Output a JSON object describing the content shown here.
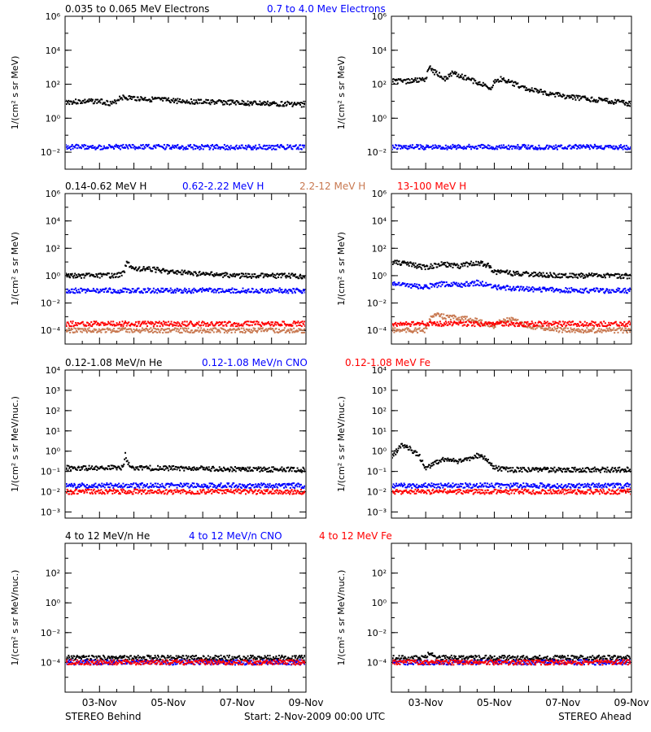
{
  "footer": {
    "left": "STEREO Behind",
    "center": "Start:  2-Nov-2009 00:00 UTC",
    "right": "STEREO Ahead"
  },
  "colors": {
    "black": "#000000",
    "blue": "#0000ff",
    "tan": "#c87850",
    "red": "#ff0000"
  },
  "x_tick_labels": [
    "03-Nov",
    "05-Nov",
    "07-Nov",
    "09-Nov"
  ],
  "chart_data": [
    {
      "type": "scatter",
      "panel": "behind",
      "row": 1,
      "legend": [
        "0.035 to 0.065 MeV Electrons",
        "0.7 to 4.0 Mev Electrons"
      ],
      "ylabel": "1/(cm² s sr MeV)",
      "yscale": "log",
      "ylim": [
        0.001,
        1000000
      ],
      "yticks": [
        0.01,
        1,
        100,
        10000,
        1000000
      ],
      "ytick_labels": [
        "10⁻²",
        "10⁰",
        "10²",
        "10⁴",
        "10⁶"
      ],
      "xlim_days": [
        2,
        9
      ],
      "x_ticks_days": [
        3,
        5,
        7,
        9
      ],
      "series": [
        {
          "name": "0.035 to 0.065 MeV Electrons",
          "color": "black",
          "x": [
            2.0,
            3.0,
            3.4,
            3.6,
            4.0,
            5.0,
            6.0,
            7.0,
            8.0,
            8.5,
            9.0
          ],
          "y": [
            9,
            10,
            7,
            17,
            15,
            11,
            9,
            8,
            7,
            7,
            6
          ]
        },
        {
          "name": "0.7 to 4.0 Mev Electrons",
          "color": "blue",
          "x": [
            2.0,
            9.0
          ],
          "y": [
            0.02,
            0.02
          ]
        }
      ]
    },
    {
      "type": "scatter",
      "panel": "ahead",
      "row": 1,
      "ylabel": "1/(cm² s sr MeV)",
      "yscale": "log",
      "ylim": [
        0.001,
        1000000
      ],
      "yticks": [
        0.01,
        1,
        100,
        10000,
        1000000
      ],
      "ytick_labels": [
        "10⁻²",
        "10⁰",
        "10²",
        "10⁴",
        "10⁶"
      ],
      "xlim_days": [
        2,
        9
      ],
      "x_ticks_days": [
        3,
        5,
        7,
        9
      ],
      "series": [
        {
          "name": "0.035 to 0.065 MeV Electrons",
          "color": "black",
          "x": [
            2.0,
            2.5,
            3.0,
            3.1,
            3.2,
            3.6,
            3.8,
            4.0,
            4.5,
            4.9,
            5.0,
            5.2,
            6.0,
            7.0,
            8.0,
            9.0
          ],
          "y": [
            150,
            150,
            200,
            1000,
            600,
            200,
            500,
            300,
            130,
            60,
            140,
            200,
            50,
            20,
            12,
            7
          ]
        },
        {
          "name": "0.7 to 4.0 Mev Electrons",
          "color": "blue",
          "x": [
            2.0,
            9.0
          ],
          "y": [
            0.02,
            0.02
          ]
        }
      ]
    },
    {
      "type": "scatter",
      "panel": "behind",
      "row": 2,
      "legend": [
        "0.14-0.62 MeV H",
        "0.62-2.22 MeV H",
        "2.2-12 MeV H",
        "13-100 MeV H"
      ],
      "ylabel": "1/(cm² s sr MeV)",
      "yscale": "log",
      "ylim": [
        1e-05,
        1000000
      ],
      "yticks": [
        0.0001,
        0.01,
        1,
        100,
        10000,
        1000000
      ],
      "ytick_labels": [
        "10⁻⁴",
        "10⁻²",
        "10⁰",
        "10²",
        "10⁴",
        "10⁶"
      ],
      "xlim_days": [
        2,
        9
      ],
      "x_ticks_days": [
        3,
        5,
        7,
        9
      ],
      "series": [
        {
          "name": "0.14-0.62 MeV H",
          "color": "black",
          "x": [
            2.0,
            3.5,
            3.7,
            3.8,
            4.0,
            4.5,
            5.0,
            6.0,
            7.0,
            8.0,
            9.0
          ],
          "y": [
            1.0,
            1.0,
            1.5,
            10,
            3.0,
            3.0,
            2.0,
            1.3,
            1.0,
            1.0,
            0.9
          ]
        },
        {
          "name": "0.62-2.22 MeV H",
          "color": "blue",
          "x": [
            2.0,
            9.0
          ],
          "y": [
            0.08,
            0.08
          ]
        },
        {
          "name": "2.2-12 MeV H",
          "color": "tan",
          "x": [
            2.0,
            9.0
          ],
          "y": [
            0.0001,
            0.0001
          ]
        },
        {
          "name": "13-100 MeV H",
          "color": "red",
          "x": [
            2.0,
            9.0
          ],
          "y": [
            0.0003,
            0.0003
          ]
        }
      ]
    },
    {
      "type": "scatter",
      "panel": "ahead",
      "row": 2,
      "ylabel": "1/(cm² s sr MeV)",
      "yscale": "log",
      "ylim": [
        1e-05,
        1000000
      ],
      "yticks": [
        0.0001,
        0.01,
        1,
        100,
        10000,
        1000000
      ],
      "ytick_labels": [
        "10⁻⁴",
        "10⁻²",
        "10⁰",
        "10²",
        "10⁴",
        "10⁶"
      ],
      "xlim_days": [
        2,
        9
      ],
      "x_ticks_days": [
        3,
        5,
        7,
        9
      ],
      "series": [
        {
          "name": "0.14-0.62 MeV H",
          "color": "black",
          "x": [
            2.0,
            2.5,
            3.0,
            3.5,
            4.0,
            4.5,
            4.8,
            5.0,
            5.5,
            6.0,
            7.0,
            8.0,
            9.0
          ],
          "y": [
            10,
            7,
            4,
            7,
            5,
            9,
            6,
            2,
            1.5,
            1.3,
            1.0,
            1.0,
            0.9
          ]
        },
        {
          "name": "0.62-2.22 MeV H",
          "color": "blue",
          "x": [
            2.0,
            2.5,
            3.0,
            3.5,
            4.0,
            4.5,
            5.0,
            5.5,
            6.0,
            7.0,
            8.0,
            9.0
          ],
          "y": [
            0.3,
            0.2,
            0.15,
            0.25,
            0.2,
            0.3,
            0.15,
            0.12,
            0.1,
            0.09,
            0.08,
            0.08
          ]
        },
        {
          "name": "2.2-12 MeV H",
          "color": "tan",
          "x": [
            2.0,
            3.0,
            3.2,
            3.5,
            4.0,
            4.5,
            5.0,
            5.2,
            5.5,
            6.0,
            7.0,
            9.0
          ],
          "y": [
            0.0001,
            0.0001,
            0.0015,
            0.001,
            0.0008,
            0.0005,
            0.0002,
            0.0005,
            0.0006,
            0.0002,
            0.0001,
            0.0001
          ]
        },
        {
          "name": "13-100 MeV H",
          "color": "red",
          "x": [
            2.0,
            9.0
          ],
          "y": [
            0.0003,
            0.0003
          ]
        }
      ]
    },
    {
      "type": "scatter",
      "panel": "behind",
      "row": 3,
      "legend": [
        "0.12-1.08 MeV/n He",
        "0.12-1.08 MeV/n CNO",
        "0.12-1.08 MeV Fe"
      ],
      "ylabel": "1/(cm² s sr MeV/nuc.)",
      "yscale": "log",
      "ylim": [
        0.0005,
        10000
      ],
      "yticks": [
        0.001,
        0.01,
        0.1,
        1,
        10,
        100,
        1000,
        10000
      ],
      "ytick_labels": [
        "10⁻³",
        "10⁻²",
        "10⁻¹",
        "10⁰",
        "10¹",
        "10²",
        "10³",
        "10⁴"
      ],
      "xlim_days": [
        2,
        9
      ],
      "x_ticks_days": [
        3,
        5,
        7,
        9
      ],
      "series": [
        {
          "name": "0.12-1.08 MeV/n He",
          "color": "black",
          "x": [
            2.0,
            3.7,
            3.75,
            3.8,
            4.0,
            9.0
          ],
          "y": [
            0.15,
            0.15,
            0.8,
            0.3,
            0.15,
            0.12
          ]
        },
        {
          "name": "0.12-1.08 MeV/n CNO",
          "color": "blue",
          "x": [
            2.0,
            9.0
          ],
          "y": [
            0.02,
            0.02
          ]
        },
        {
          "name": "0.12-1.08 MeV Fe",
          "color": "red",
          "x": [
            2.0,
            9.0
          ],
          "y": [
            0.01,
            0.01
          ]
        }
      ]
    },
    {
      "type": "scatter",
      "panel": "ahead",
      "row": 3,
      "ylabel": "1/(cm² s sr MeV/nuc.)",
      "yscale": "log",
      "ylim": [
        0.0005,
        10000
      ],
      "yticks": [
        0.001,
        0.01,
        0.1,
        1,
        10,
        100,
        1000,
        10000
      ],
      "ytick_labels": [
        "10⁻³",
        "10⁻²",
        "10⁻¹",
        "10⁰",
        "10¹",
        "10²",
        "10³",
        "10⁴"
      ],
      "xlim_days": [
        2,
        9
      ],
      "x_ticks_days": [
        3,
        5,
        7,
        9
      ],
      "series": [
        {
          "name": "0.12-1.08 MeV/n He",
          "color": "black",
          "x": [
            2.0,
            2.3,
            2.5,
            2.8,
            3.0,
            3.5,
            4.0,
            4.5,
            4.8,
            5.0,
            5.5,
            6.0,
            7.0,
            9.0
          ],
          "y": [
            0.5,
            2.0,
            1.5,
            0.6,
            0.15,
            0.4,
            0.3,
            0.6,
            0.4,
            0.15,
            0.12,
            0.12,
            0.12,
            0.12
          ]
        },
        {
          "name": "0.12-1.08 MeV/n CNO",
          "color": "blue",
          "x": [
            2.0,
            9.0
          ],
          "y": [
            0.02,
            0.02
          ]
        },
        {
          "name": "0.12-1.08 MeV Fe",
          "color": "red",
          "x": [
            2.0,
            9.0
          ],
          "y": [
            0.01,
            0.01
          ]
        }
      ]
    },
    {
      "type": "scatter",
      "panel": "behind",
      "row": 4,
      "legend": [
        "4 to 12 MeV/n He",
        "4 to 12 MeV/n CNO",
        "4 to 12 MeV Fe"
      ],
      "ylabel": "1/(cm² s sr MeV/nuc.)",
      "yscale": "log",
      "ylim": [
        1e-06,
        10000
      ],
      "yticks": [
        0.0001,
        0.01,
        1,
        100
      ],
      "ytick_labels": [
        "10⁻⁴",
        "10⁻²",
        "10⁰",
        "10²"
      ],
      "xlim_days": [
        2,
        9
      ],
      "x_ticks_days": [
        3,
        5,
        7,
        9
      ],
      "series": [
        {
          "name": "4 to 12 MeV/n He",
          "color": "black",
          "x": [
            2.0,
            9.0
          ],
          "y": [
            0.0002,
            0.0002
          ]
        },
        {
          "name": "4 to 12 MeV/n CNO",
          "color": "blue",
          "x": [
            2.0,
            9.0
          ],
          "y": [
            0.0001,
            0.0001
          ]
        },
        {
          "name": "4 to 12 MeV Fe",
          "color": "red",
          "x": [
            2.0,
            9.0
          ],
          "y": [
            0.0001,
            0.0001
          ]
        }
      ]
    },
    {
      "type": "scatter",
      "panel": "ahead",
      "row": 4,
      "ylabel": "1/(cm² s sr MeV/nuc.)",
      "yscale": "log",
      "ylim": [
        1e-06,
        10000
      ],
      "yticks": [
        0.0001,
        0.01,
        1,
        100
      ],
      "ytick_labels": [
        "10⁻⁴",
        "10⁻²",
        "10⁰",
        "10²"
      ],
      "xlim_days": [
        2,
        9
      ],
      "x_ticks_days": [
        3,
        5,
        7,
        9
      ],
      "series": [
        {
          "name": "4 to 12 MeV/n He",
          "color": "black",
          "x": [
            2.0,
            3.0,
            3.1,
            3.3,
            9.0
          ],
          "y": [
            0.0002,
            0.0002,
            0.0004,
            0.0002,
            0.0002
          ]
        },
        {
          "name": "4 to 12 MeV/n CNO",
          "color": "blue",
          "x": [
            2.0,
            9.0
          ],
          "y": [
            0.0001,
            0.0001
          ]
        },
        {
          "name": "4 to 12 MeV Fe",
          "color": "red",
          "x": [
            2.0,
            9.0
          ],
          "y": [
            0.0001,
            0.0001
          ]
        }
      ]
    }
  ]
}
